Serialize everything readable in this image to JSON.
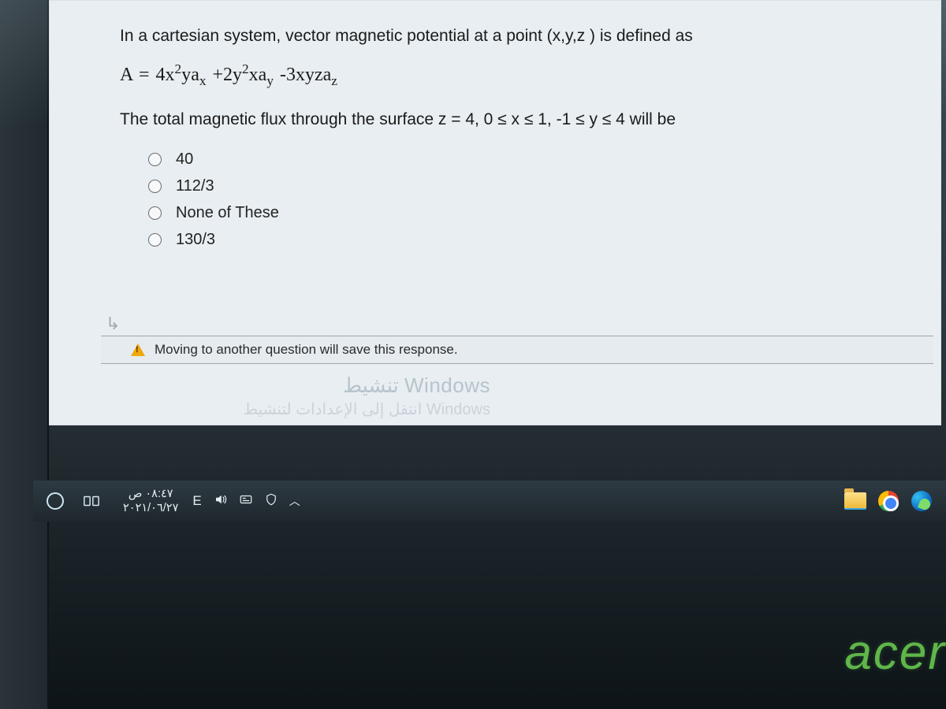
{
  "question": {
    "intro": "In a cartesian system, vector magnetic potential at a point (x,y,z ) is defined as",
    "equation_html": "<span class='upright'>A = 4x</span><sup>2</sup><span class='upright'>ya</span><sub>x</sub> <span class='upright'>+2y</span><sup>2</sup><span class='upright'>xa</span><sub>y</sub> <span class='upright'>-3xyza</span><sub>z</sub>",
    "constraints": "The total magnetic flux through the surface z = 4, 0 ≤ x ≤ 1, -1 ≤ y ≤ 4 will be",
    "answers": [
      {
        "label": "40"
      },
      {
        "label": "112/3"
      },
      {
        "label": "None of These"
      },
      {
        "label": "130/3"
      }
    ]
  },
  "warning_text": "Moving to another question will save this response.",
  "watermark": {
    "line1": "تنشيط Windows",
    "line2": "انتقل إلى الإعدادات لتنشيط Windows"
  },
  "taskbar": {
    "time": "٠٨:٤٧ ص",
    "date": "٢٠٢١/٠٦/٢٧",
    "language": "E"
  },
  "laptop_brand": "acer",
  "colors": {
    "panel_bg": "#e9eef2",
    "text": "#1a1a1a",
    "taskbar_bg": "#1e272d",
    "watermark": "rgba(120,145,160,0.45)",
    "acer_green": "#5fb64a",
    "warn_yellow": "#f0a80c"
  }
}
